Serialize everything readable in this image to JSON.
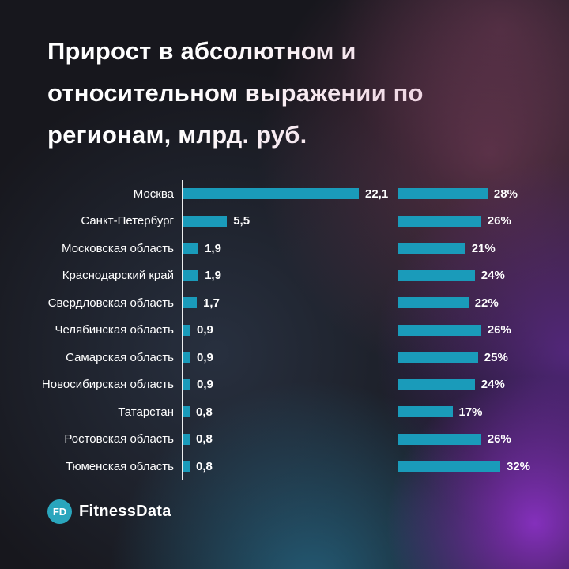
{
  "title": "Прирост в абсолютном и относительном выражении по регионам, млрд. руб.",
  "chart_data": {
    "type": "bar",
    "orientation": "horizontal",
    "title": "Прирост в абсолютном и относительном выражении по регионам, млрд. руб.",
    "categories": [
      "Москва",
      "Санкт-Петербург",
      "Московская область",
      "Краснодарский край",
      "Свердловская область",
      "Челябинская область",
      "Самарская область",
      "Новосибирская область",
      "Татарстан",
      "Ростовская область",
      "Тюменская область"
    ],
    "series": [
      {
        "name": "absolute_growth_billion_rub",
        "values": [
          22.1,
          5.5,
          1.9,
          1.9,
          1.7,
          0.9,
          0.9,
          0.9,
          0.8,
          0.8,
          0.8
        ],
        "labels": [
          "22,1",
          "5,5",
          "1,9",
          "1,9",
          "1,7",
          "0,9",
          "0,9",
          "0,9",
          "0,8",
          "0,8",
          "0,8"
        ],
        "xlim": [
          0,
          22.1
        ]
      },
      {
        "name": "relative_growth_percent",
        "values": [
          28,
          26,
          21,
          24,
          22,
          26,
          25,
          24,
          17,
          26,
          32
        ],
        "labels": [
          "28%",
          "26%",
          "21%",
          "24%",
          "22%",
          "26%",
          "25%",
          "24%",
          "17%",
          "26%",
          "32%"
        ],
        "xlim": [
          0,
          32
        ]
      }
    ],
    "bar_color": "#1a9bba",
    "axis_line_color": "#ffffff",
    "value_label_color": "#ffffff",
    "grid": false,
    "legend": false
  },
  "footer": {
    "logo_monogram": "FD",
    "logo_text": "FitnessData",
    "logo_circle_color": "#2aa6bd"
  }
}
